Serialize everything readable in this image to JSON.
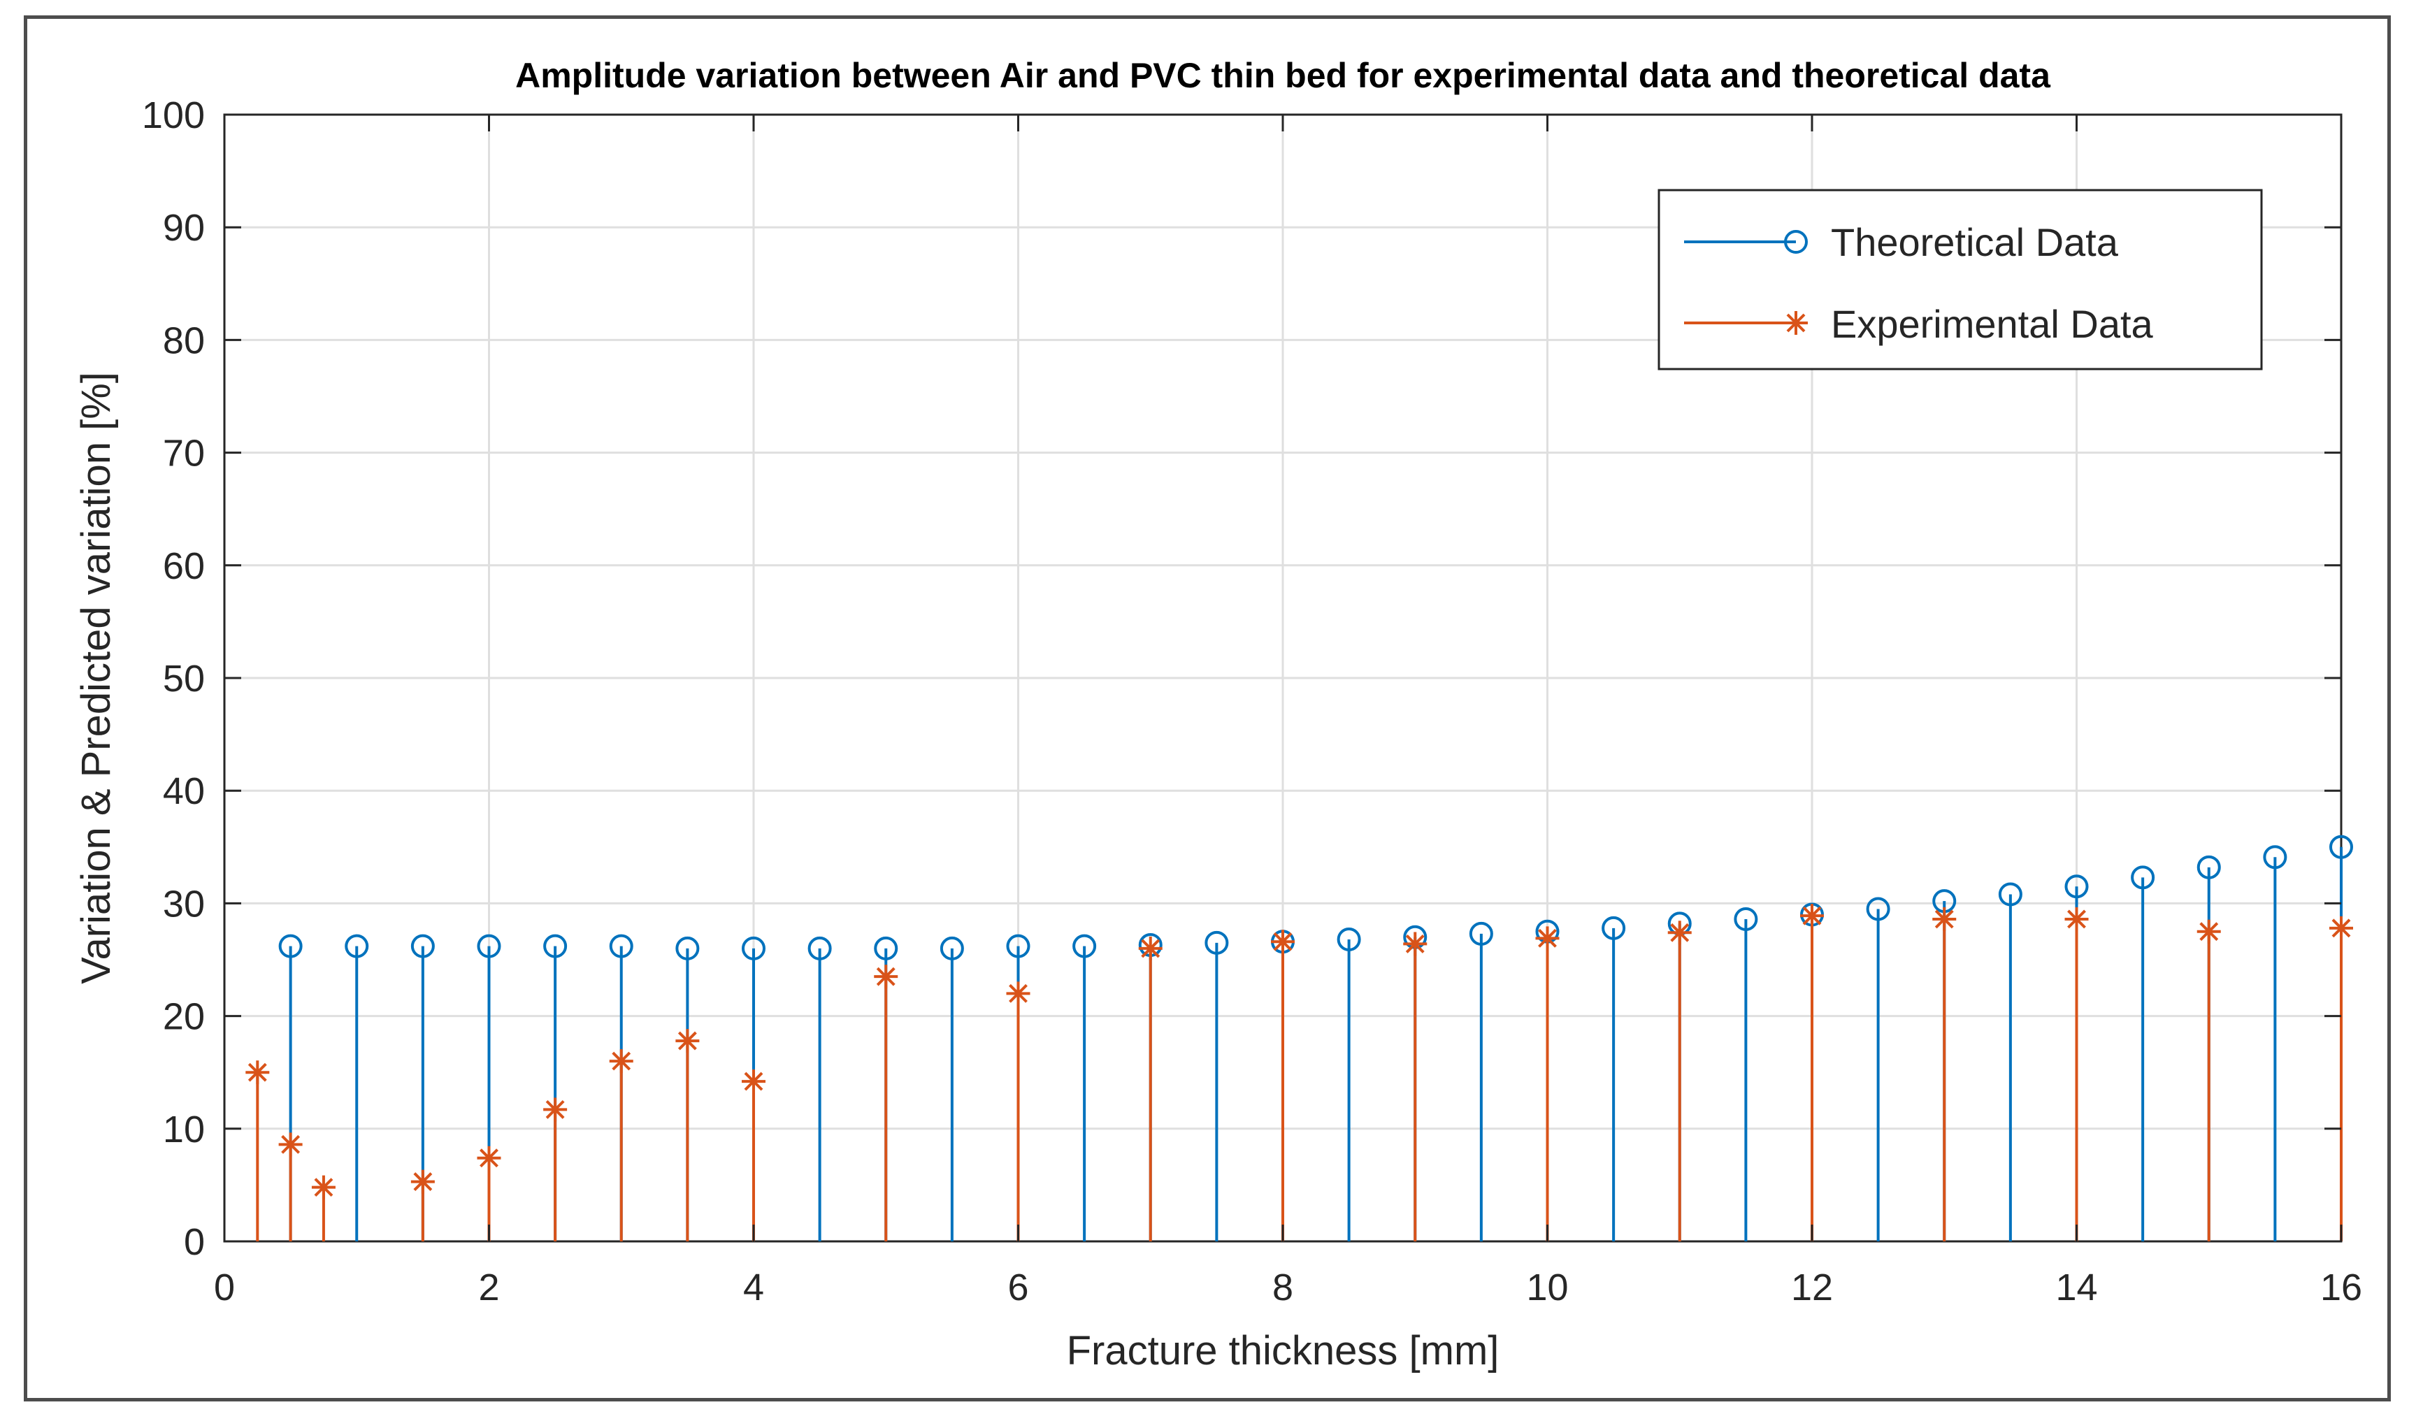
{
  "chart_data": {
    "type": "stem",
    "title": "Amplitude variation between Air and PVC thin bed for experimental data and theoretical data",
    "xlabel": "Fracture thickness [mm]",
    "ylabel": "Variation & Predicted variation [%]",
    "xlim": [
      0,
      16
    ],
    "ylim": [
      0,
      100
    ],
    "xticks": [
      0,
      2,
      4,
      6,
      8,
      10,
      12,
      14,
      16
    ],
    "yticks": [
      0,
      10,
      20,
      30,
      40,
      50,
      60,
      70,
      80,
      90,
      100
    ],
    "grid": true,
    "legend_position": "top-right",
    "series": [
      {
        "name": "Theoretical Data",
        "color": "#0072BD",
        "marker": "circle",
        "x": [
          0.5,
          1,
          1.5,
          2,
          2.5,
          3,
          3.5,
          4,
          4.5,
          5,
          5.5,
          6,
          6.5,
          7,
          7.5,
          8,
          8.5,
          9,
          9.5,
          10,
          10.5,
          11,
          11.5,
          12,
          12.5,
          13,
          13.5,
          14,
          14.5,
          15,
          15.5,
          16
        ],
        "values": [
          26.2,
          26.2,
          26.2,
          26.2,
          26.2,
          26.2,
          26.0,
          26.0,
          26.0,
          26.0,
          26.0,
          26.2,
          26.2,
          26.3,
          26.5,
          26.6,
          26.8,
          27.0,
          27.3,
          27.5,
          27.8,
          28.2,
          28.6,
          29.0,
          29.5,
          30.2,
          30.8,
          31.5,
          32.3,
          33.2,
          34.1,
          35.0
        ]
      },
      {
        "name": "Experimental Data",
        "color": "#D95319",
        "marker": "asterisk",
        "x": [
          0.25,
          0.5,
          0.75,
          1.5,
          2,
          2.5,
          3,
          3.5,
          4,
          5,
          6,
          7,
          8,
          9,
          10,
          11,
          12,
          13,
          14,
          15,
          16
        ],
        "values": [
          15.0,
          8.6,
          4.8,
          5.3,
          7.4,
          11.7,
          16.0,
          17.8,
          14.2,
          23.5,
          22.0,
          26.0,
          26.6,
          26.4,
          26.9,
          27.4,
          28.9,
          28.6,
          28.6,
          27.5,
          27.8
        ]
      }
    ]
  }
}
